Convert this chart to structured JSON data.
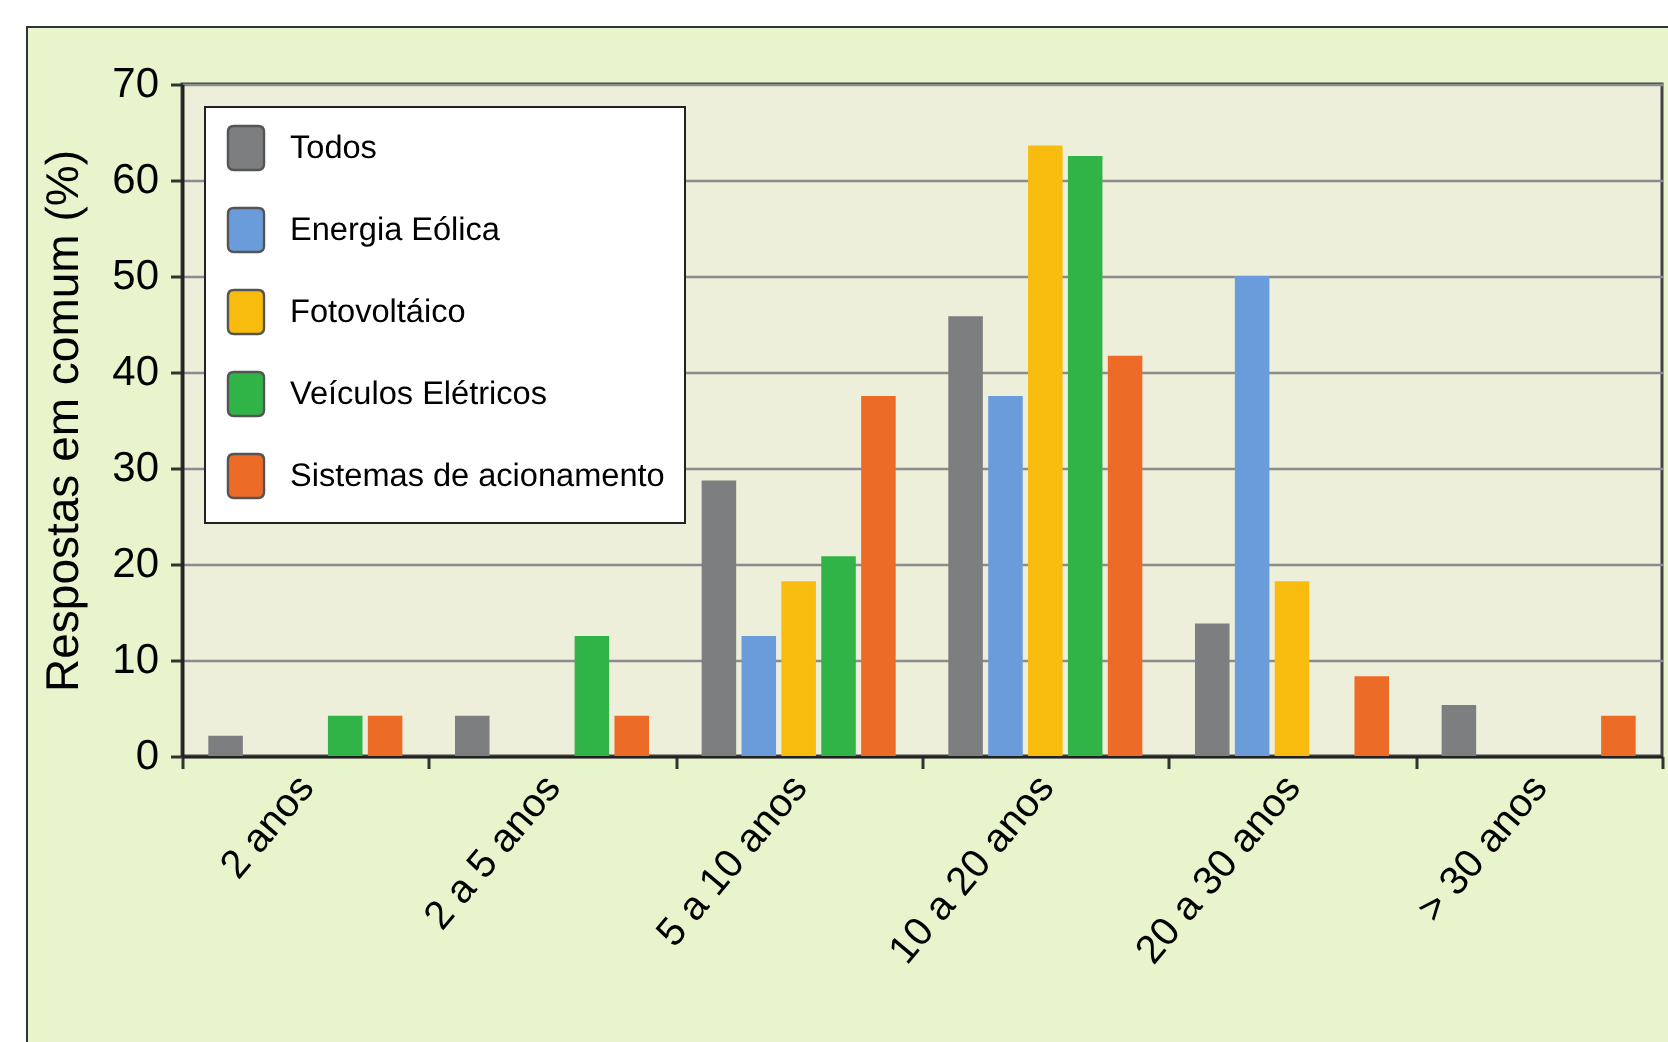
{
  "chart_data": {
    "type": "bar",
    "categories": [
      "2 anos",
      "2 a 5 anos",
      "5 a 10 anos",
      "10 a 20 anos",
      "20 a 30 anos",
      "> 30 anos"
    ],
    "ylabel": "Respostas em comum (%)",
    "series": [
      {
        "name": "Todos",
        "color": "#7d7e80",
        "values": [
          2.1,
          4.2,
          28.7,
          45.8,
          13.8,
          5.3
        ]
      },
      {
        "name": "Energia Eólica",
        "color": "#6a9cdb",
        "values": [
          0,
          0,
          12.5,
          37.5,
          50,
          0
        ]
      },
      {
        "name": "Fotovoltáico",
        "color": "#f8bc0e",
        "values": [
          0,
          0,
          18.2,
          63.6,
          18.2,
          0
        ]
      },
      {
        "name": "Veículos Elétricos",
        "color": "#31b447",
        "values": [
          4.2,
          12.5,
          20.8,
          62.5,
          0,
          0
        ]
      },
      {
        "name": "Sistemas de acionamento",
        "color": "#ec6c27",
        "values": [
          4.2,
          4.2,
          37.5,
          41.7,
          8.3,
          4.2
        ]
      }
    ],
    "ylim": [
      0,
      70
    ],
    "yticks": [
      0,
      10,
      20,
      30,
      40,
      50,
      60,
      70
    ],
    "grid": "y",
    "legend": "top left"
  }
}
